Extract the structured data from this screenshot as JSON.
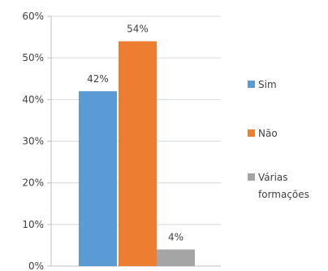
{
  "chart_data": {
    "type": "bar",
    "title": "",
    "xlabel": "",
    "ylabel": "",
    "ylim": [
      0,
      60
    ],
    "yticks": [
      0,
      10,
      20,
      30,
      40,
      50,
      60
    ],
    "ytick_labels": [
      "0%",
      "10%",
      "20%",
      "30%",
      "40%",
      "50%",
      "60%"
    ],
    "grid": true,
    "legend_position": "right",
    "series": [
      {
        "name": "Sim",
        "values": [
          42
        ],
        "label": "42%",
        "color": "#5b9bd5"
      },
      {
        "name": "Não",
        "values": [
          54
        ],
        "label": "54%",
        "color": "#ed7d31"
      },
      {
        "name": "Várias formações",
        "values": [
          4
        ],
        "label": "4%",
        "color": "#a5a5a5"
      }
    ],
    "legend": [
      {
        "lines": [
          "Sim"
        ]
      },
      {
        "lines": [
          "Não"
        ]
      },
      {
        "lines": [
          "Várias",
          "formações"
        ]
      }
    ]
  }
}
